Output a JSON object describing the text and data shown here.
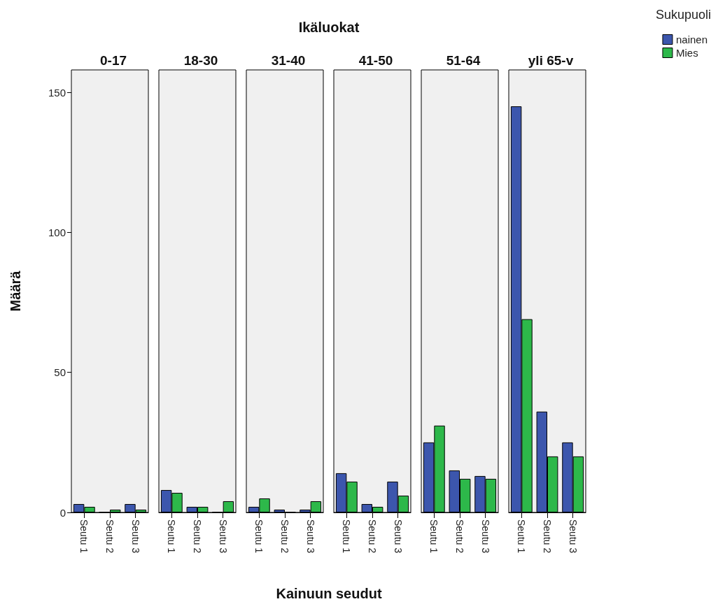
{
  "chart_data": [
    {
      "type": "bar",
      "title": "0-17",
      "ylabel": "Määrä",
      "annotations": [
        "Ikäluokat",
        "Kainuun seudut"
      ],
      "categories": [
        "Seutu 1",
        "Seutu 2",
        "Seutu 3"
      ],
      "ylim": [
        0,
        158
      ],
      "yticks": [
        0,
        50,
        100,
        150
      ],
      "grid": false,
      "series": [
        {
          "color": "#3c56ad",
          "values": [
            3,
            0,
            3
          ]
        },
        {
          "color": "#2db84a",
          "values": [
            2,
            1,
            1
          ]
        }
      ]
    },
    {
      "type": "bar",
      "title": "18-30",
      "categories": [
        "Seutu 1",
        "Seutu 2",
        "Seutu 3"
      ],
      "ylim": [
        0,
        158
      ],
      "yticks": [
        0,
        50,
        100,
        150
      ],
      "grid": false,
      "tick_labels": "x",
      "series": [
        {
          "color": "#3c56ad",
          "values": [
            8,
            2,
            0
          ]
        },
        {
          "color": "#2db84a",
          "values": [
            7,
            2,
            4
          ]
        }
      ]
    },
    {
      "type": "bar",
      "title": "31-40",
      "categories": [
        "Seutu 1",
        "Seutu 2",
        "Seutu 3"
      ],
      "ylim": [
        0,
        158
      ],
      "yticks": [
        0,
        50,
        100,
        150
      ],
      "grid": false,
      "tick_labels": "x",
      "series": [
        {
          "color": "#3c56ad",
          "values": [
            2,
            1,
            1
          ]
        },
        {
          "color": "#2db84a",
          "values": [
            5,
            0,
            4
          ]
        }
      ]
    },
    {
      "type": "bar",
      "title": "41-50",
      "categories": [
        "Seutu 1",
        "Seutu 2",
        "Seutu 3"
      ],
      "ylim": [
        0,
        158
      ],
      "yticks": [
        0,
        50,
        100,
        150
      ],
      "grid": false,
      "tick_labels": "x",
      "series": [
        {
          "color": "#3c56ad",
          "values": [
            14,
            3,
            11
          ]
        },
        {
          "color": "#2db84a",
          "values": [
            11,
            2,
            6
          ]
        }
      ]
    },
    {
      "type": "bar",
      "title": "51-64",
      "categories": [
        "Seutu 1",
        "Seutu 2",
        "Seutu 3"
      ],
      "ylim": [
        0,
        158
      ],
      "yticks": [
        0,
        50,
        100,
        150
      ],
      "grid": false,
      "tick_labels": "x",
      "series": [
        {
          "color": "#3c56ad",
          "values": [
            25,
            15,
            13
          ]
        },
        {
          "color": "#2db84a",
          "values": [
            31,
            12,
            12
          ]
        }
      ]
    },
    {
      "type": "bar",
      "title": "yli 65-v",
      "legend": "top right",
      "legend_title": "Sukupuoli",
      "categories": [
        "Seutu 1",
        "Seutu 2",
        "Seutu 3"
      ],
      "ylim": [
        0,
        158
      ],
      "yticks": [
        0,
        50,
        100,
        150
      ],
      "grid": false,
      "tick_labels": "x",
      "series": [
        {
          "name": "nainen",
          "color": "#3c56ad",
          "values": [
            145,
            36,
            25
          ]
        },
        {
          "name": "Mies",
          "color": "#2db84a",
          "values": [
            69,
            20,
            20
          ]
        }
      ]
    }
  ]
}
